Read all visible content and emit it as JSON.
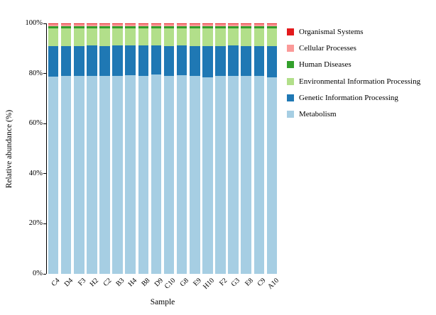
{
  "figure": {
    "background": "#ffffff",
    "text_color": "#000000"
  },
  "chart_data": {
    "type": "bar",
    "stacked": true,
    "orientation": "vertical",
    "title": "",
    "xlabel": "Sample",
    "ylabel": "Relative abundance (%)",
    "ylim": [
      0,
      100
    ],
    "y_ticks": [
      "0%",
      "20%",
      "40%",
      "60%",
      "80%",
      "100%"
    ],
    "grid": false,
    "categories": [
      "C4",
      "D4",
      "F3",
      "H2",
      "C2",
      "B3",
      "H4",
      "B8",
      "D9",
      "C10",
      "G8",
      "E9",
      "H10",
      "F2",
      "G3",
      "E8",
      "C9",
      "A10"
    ],
    "series": [
      {
        "name": "Metabolism",
        "color": "#A6CEE3",
        "values": [
          78.8,
          79.0,
          78.9,
          79.1,
          78.9,
          79.1,
          79.2,
          79.0,
          79.5,
          78.9,
          79.3,
          78.9,
          78.5,
          79.0,
          79.1,
          78.9,
          79.0,
          78.6
        ]
      },
      {
        "name": "Genetic Information Processing",
        "color": "#1F78B4",
        "values": [
          12.1,
          12.0,
          12.1,
          12.0,
          12.1,
          12.0,
          11.9,
          12.1,
          11.8,
          12.1,
          11.9,
          12.1,
          12.3,
          12.0,
          12.0,
          12.1,
          12.0,
          12.2
        ]
      },
      {
        "name": "Environmental Information Processing",
        "color": "#B2DF8A",
        "values": [
          7.2,
          7.1,
          7.1,
          7.0,
          7.1,
          7.0,
          7.0,
          7.0,
          6.8,
          7.1,
          6.9,
          7.1,
          7.3,
          7.1,
          7.0,
          7.1,
          7.1,
          7.3
        ]
      },
      {
        "name": "Human Diseases",
        "color": "#33A02C",
        "values": [
          0.8,
          0.8,
          0.8,
          0.8,
          0.8,
          0.8,
          0.8,
          0.8,
          0.8,
          0.8,
          0.8,
          0.8,
          0.8,
          0.8,
          0.8,
          0.8,
          0.8,
          0.8
        ]
      },
      {
        "name": "Cellular Processes",
        "color": "#FB9A99",
        "values": [
          0.8,
          0.8,
          0.8,
          0.8,
          0.8,
          0.8,
          0.8,
          0.8,
          0.8,
          0.8,
          0.8,
          0.8,
          0.8,
          0.8,
          0.8,
          0.8,
          0.8,
          0.8
        ]
      },
      {
        "name": "Organismal Systems",
        "color": "#E31A1C",
        "values": [
          0.3,
          0.3,
          0.3,
          0.3,
          0.3,
          0.3,
          0.3,
          0.3,
          0.3,
          0.3,
          0.3,
          0.3,
          0.3,
          0.3,
          0.3,
          0.3,
          0.3,
          0.3
        ]
      }
    ],
    "legend": {
      "position": "right",
      "items": [
        {
          "label": "Organismal Systems",
          "color": "#E31A1C"
        },
        {
          "label": "Cellular Processes",
          "color": "#FB9A99"
        },
        {
          "label": "Human Diseases",
          "color": "#33A02C"
        },
        {
          "label": "Environmental Information Processing",
          "color": "#B2DF8A"
        },
        {
          "label": "Genetic Information Processing",
          "color": "#1F78B4"
        },
        {
          "label": "Metabolism",
          "color": "#A6CEE3"
        }
      ]
    }
  }
}
